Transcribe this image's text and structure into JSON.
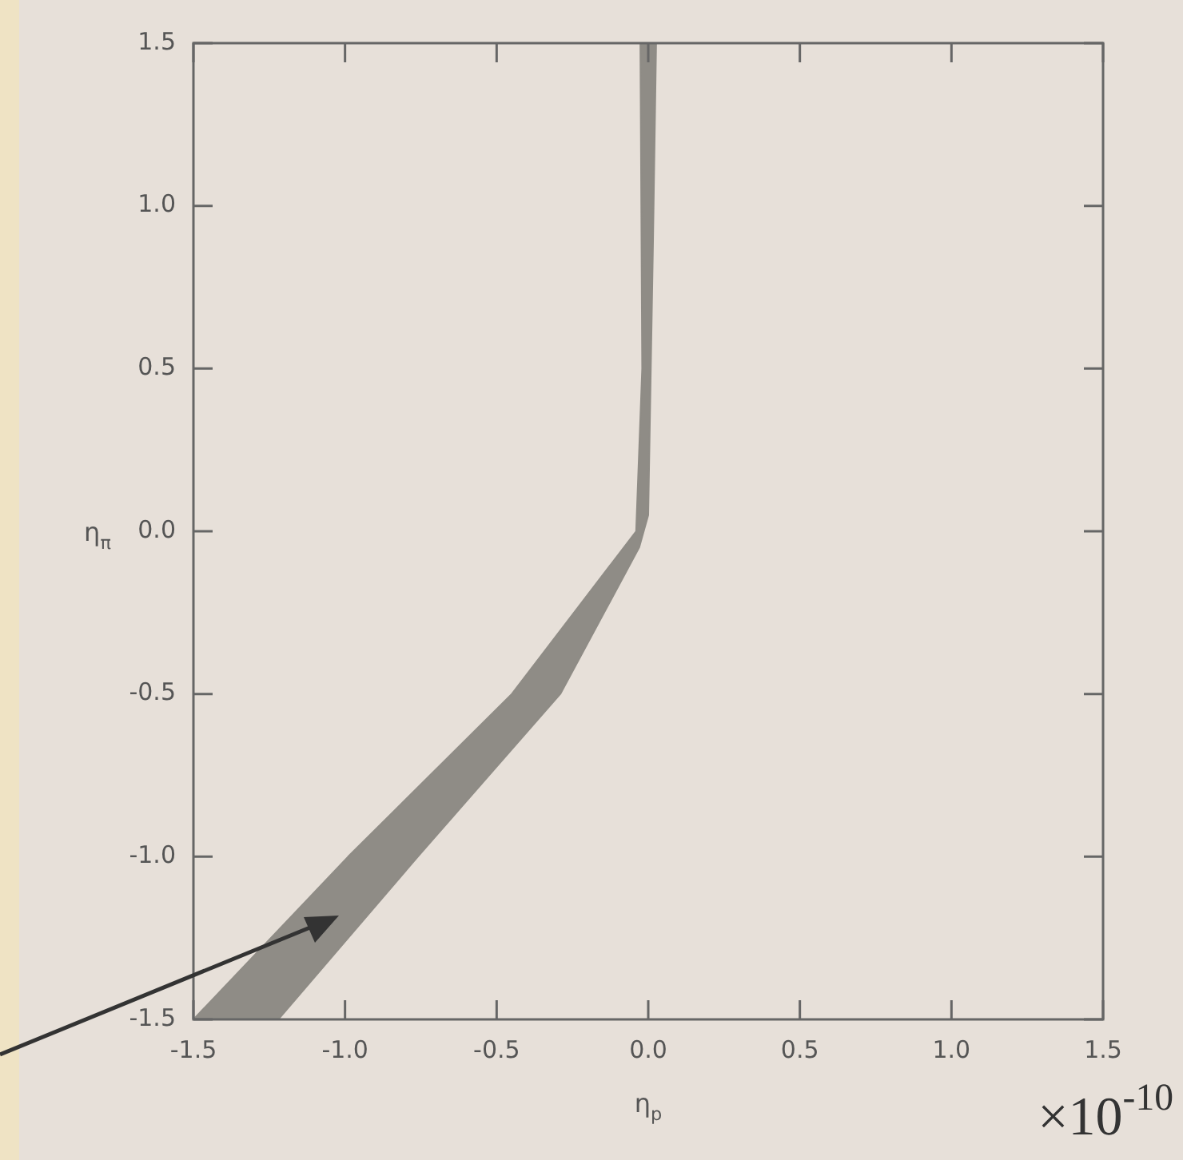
{
  "chart_data": {
    "type": "area",
    "xlabel": "η$_{p}$",
    "ylabel": "η$_{π}$",
    "annotations": [
      "×10$^{-10}$"
    ],
    "series": [
      {
        "color": "#8f8c86",
        "x": [
          -0.026,
          0.026,
          0.016,
          0.0,
          -0.03,
          -0.29,
          -0.76,
          -1.22,
          -1.5,
          -0.99,
          -0.45,
          -0.04,
          -0.02,
          -0.026
        ],
        "values": [
          1.5,
          1.5,
          0.9,
          0.05,
          -0.05,
          -0.5,
          -1.0,
          -1.5,
          -1.5,
          -1.0,
          -0.5,
          0.0,
          0.5,
          1.5
        ]
      }
    ],
    "xlim": [
      -1.5,
      1.5
    ],
    "ylim": [
      -1.5,
      1.5
    ],
    "xticks": [
      {
        "value": -1.5,
        "label": "-1.5"
      },
      {
        "value": -1,
        "label": "-1.0"
      },
      {
        "value": -0.5,
        "label": "-0.5"
      },
      {
        "value": 0,
        "label": "0.0"
      },
      {
        "value": 0.5,
        "label": "0.5"
      },
      {
        "value": 1,
        "label": "1.0"
      },
      {
        "value": 1.5,
        "label": "1.5"
      }
    ],
    "yticks": [
      {
        "value": -1.5,
        "label": "-1.5"
      },
      {
        "value": -1,
        "label": "-1.0"
      },
      {
        "value": -0.5,
        "label": "-0.5"
      },
      {
        "value": 0,
        "label": "0.0"
      },
      {
        "value": 0.5,
        "label": "0.5"
      },
      {
        "value": 1,
        "label": "1.0"
      },
      {
        "value": 1.5,
        "label": "1.5"
      }
    ]
  }
}
